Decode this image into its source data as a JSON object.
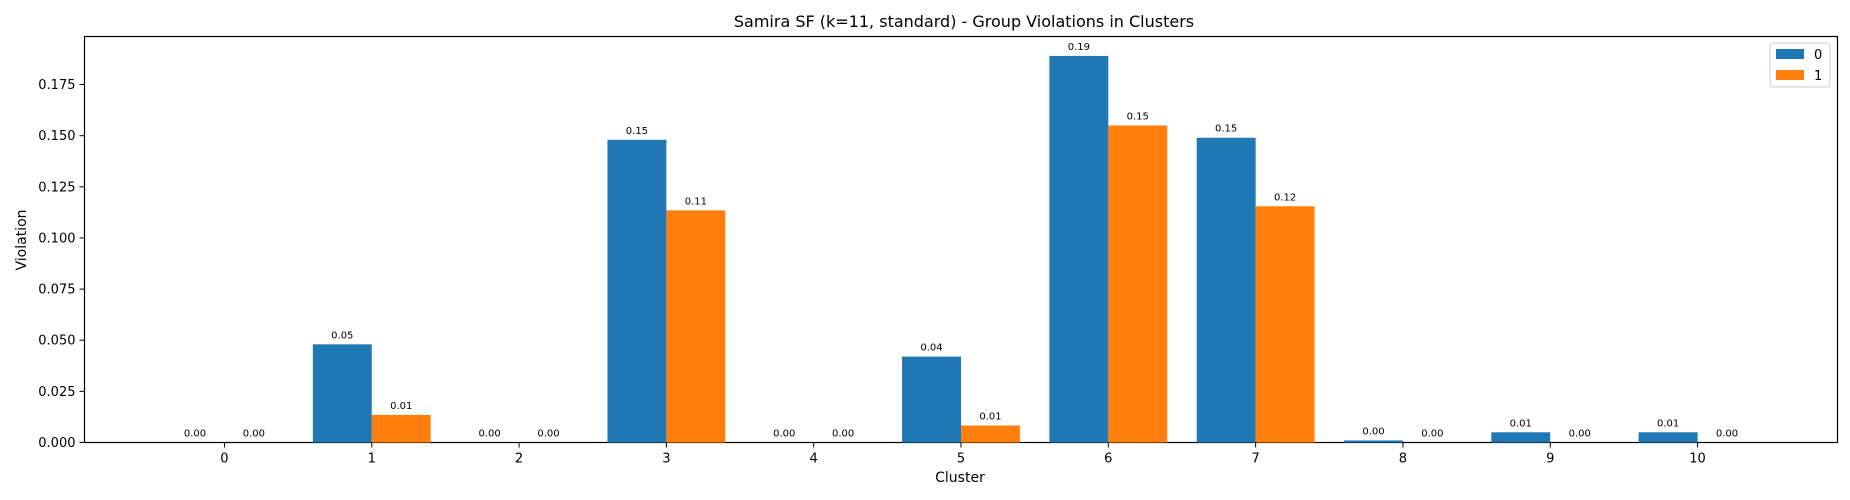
{
  "chart_data": {
    "type": "bar",
    "title": "Samira SF (k=11, standard) - Group Violations in Clusters",
    "xlabel": "Cluster",
    "ylabel": "Violation",
    "categories": [
      "0",
      "1",
      "2",
      "3",
      "4",
      "5",
      "6",
      "7",
      "8",
      "9",
      "10"
    ],
    "series": [
      {
        "name": "0",
        "color": "#1f77b4",
        "values": [
          0.0,
          0.048,
          0.0,
          0.148,
          0.0,
          0.042,
          0.189,
          0.149,
          0.001,
          0.005,
          0.005
        ],
        "labels": [
          "0.00",
          "0.05",
          "0.00",
          "0.15",
          "0.00",
          "0.04",
          "0.19",
          "0.15",
          "0.00",
          "0.01",
          "0.01"
        ]
      },
      {
        "name": "1",
        "color": "#ff7f0e",
        "values": [
          0.0,
          0.0135,
          0.0,
          0.1135,
          0.0,
          0.0083,
          0.155,
          0.1155,
          0.0,
          0.0,
          0.0
        ],
        "labels": [
          "0.00",
          "0.01",
          "0.00",
          "0.11",
          "0.00",
          "0.01",
          "0.15",
          "0.12",
          "0.00",
          "0.00",
          "0.00"
        ]
      }
    ],
    "yticks": [
      0.0,
      0.025,
      0.05,
      0.075,
      0.1,
      0.125,
      0.15,
      0.175
    ],
    "ytick_labels": [
      "0.000",
      "0.025",
      "0.050",
      "0.075",
      "0.100",
      "0.125",
      "0.150",
      "0.175"
    ],
    "ylim": [
      0,
      0.1985
    ],
    "xlim": [
      -0.95,
      10.95
    ],
    "grid": false,
    "legend_position": "top-right"
  }
}
